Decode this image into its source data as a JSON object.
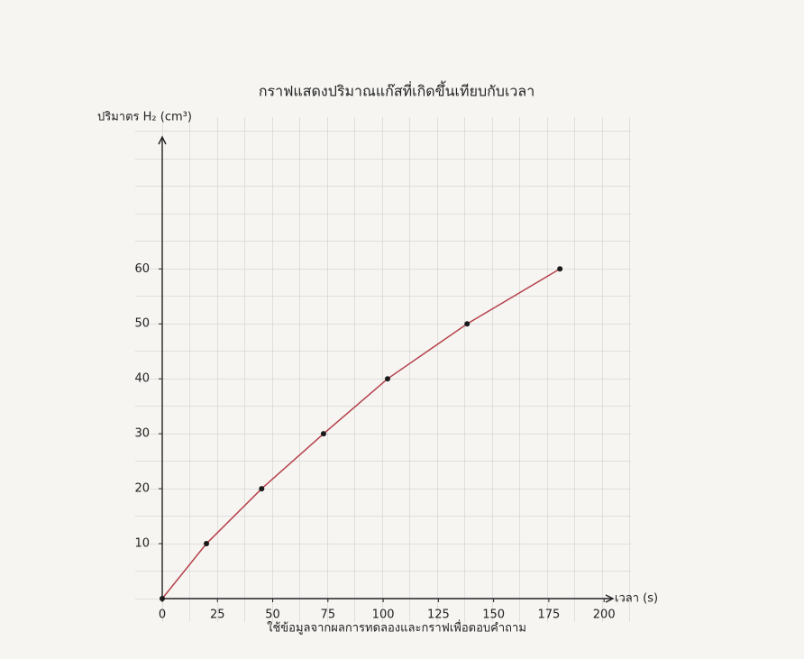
{
  "chart_data": {
    "type": "line",
    "title": "กราฟแสดงปริมาณแก๊สที่เกิดขึ้นเทียบกับเวลา",
    "y_label": "ปริมาตร H₂ (cm³)",
    "x_label": "เวลา (s)",
    "caption": "ใช้ข้อมูลจากผลการทดลองและกราฟเพื่อตอบคำถาม",
    "x": [
      0,
      20,
      45,
      73,
      102,
      138,
      180
    ],
    "series": [
      {
        "values": [
          0,
          10,
          20,
          30,
          40,
          50,
          60
        ],
        "color": "#b5404a",
        "marker_color": "#1a1a1a"
      }
    ],
    "xlim": [
      0,
      204
    ],
    "ylim": [
      0,
      84
    ],
    "xticks": [
      0,
      25,
      50,
      75,
      100,
      125,
      150,
      175,
      200
    ],
    "yticks": [
      10,
      20,
      30,
      40,
      50,
      60
    ]
  }
}
